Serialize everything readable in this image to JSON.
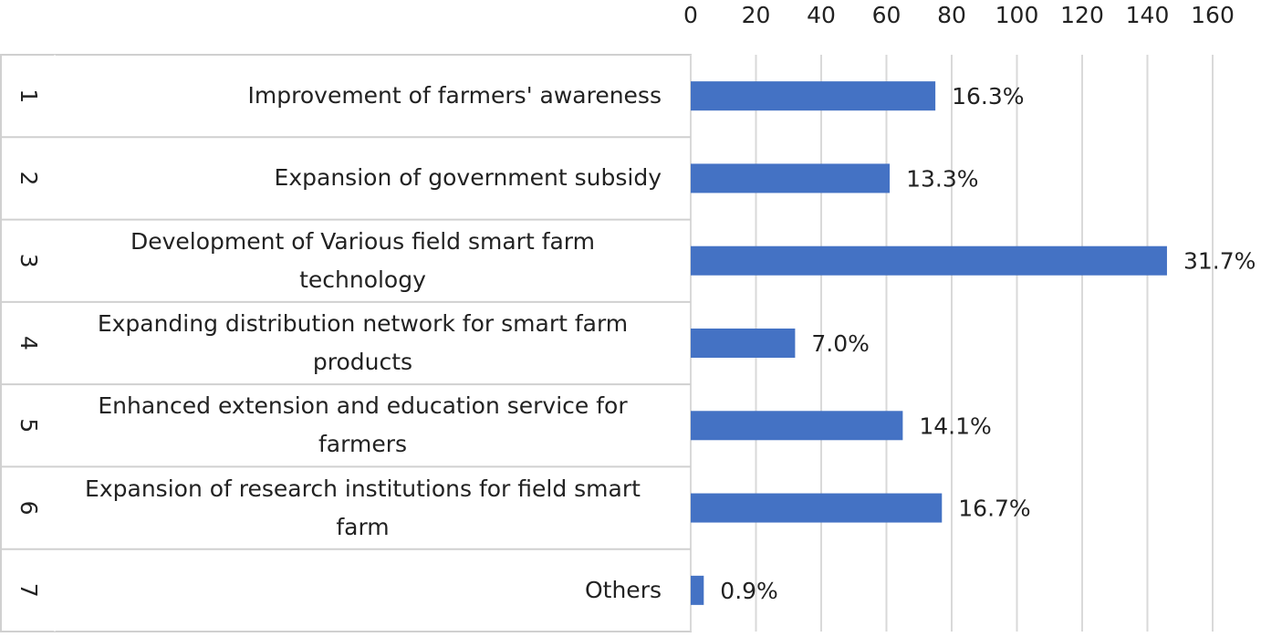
{
  "chart_data": {
    "type": "barh",
    "row_numbers": [
      "1",
      "2",
      "3",
      "4",
      "5",
      "6",
      "7"
    ],
    "categories": [
      "Improvement of farmers' awareness",
      "Expansion of government subsidy",
      "Development of Various field smart farm technology",
      "Expanding distribution network for smart farm products",
      "Enhanced extension and education service for farmers",
      "Expansion of research institutions for field smart farm",
      "Others"
    ],
    "values": [
      75,
      61,
      146,
      32,
      65,
      77,
      4
    ],
    "annotations": [
      "16.3%",
      "13.3%",
      "31.7%",
      "7.0%",
      "14.1%",
      "16.7%",
      "0.9%"
    ],
    "color": "#4472c4",
    "xlim": [
      0,
      160
    ],
    "xticks": [
      0,
      20,
      40,
      60,
      80,
      100,
      120,
      140,
      160
    ],
    "grid": true
  }
}
